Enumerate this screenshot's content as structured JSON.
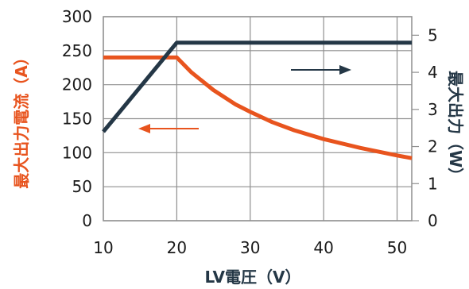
{
  "chart_data": {
    "type": "line",
    "xlabel": "LV電圧（V）",
    "ylabel_left": "最大出力電流（A）",
    "ylabel_right": "最大出力（W）",
    "xlim": [
      10,
      52
    ],
    "ylim_left": [
      0,
      300
    ],
    "ylim_right": [
      0,
      5.5
    ],
    "x_ticks": [
      "10",
      "20",
      "30",
      "40",
      "50"
    ],
    "y_left_ticks": [
      "0",
      "50",
      "100",
      "150",
      "200",
      "250",
      "300"
    ],
    "y_right_ticks": [
      "0",
      "1",
      "2",
      "3",
      "4",
      "5"
    ],
    "grid": true,
    "colors": {
      "current": "#e8541e",
      "power": "#243746",
      "grid": "#8f8f8f"
    },
    "series": [
      {
        "axis": "left",
        "x": [
          10,
          20,
          22,
          25,
          28,
          30,
          33,
          36,
          40,
          45,
          50,
          52
        ],
        "values": [
          240,
          240,
          218,
          192,
          171,
          160,
          145,
          133,
          120,
          107,
          96,
          92
        ]
      },
      {
        "axis": "right",
        "x": [
          10,
          20,
          52
        ],
        "values": [
          2.4,
          4.8,
          4.8
        ]
      }
    ],
    "annotations": [
      {
        "name": "arrow-to-left-axis",
        "series": "current",
        "direction": "left"
      },
      {
        "name": "arrow-to-right-axis",
        "series": "power",
        "direction": "right"
      }
    ]
  }
}
